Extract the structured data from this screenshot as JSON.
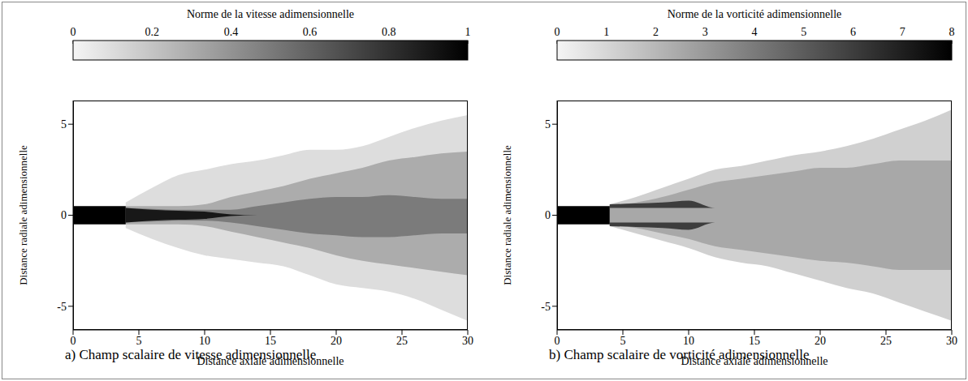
{
  "chart_data": [
    {
      "type": "field",
      "caption": "a)  Champ scalaire de vitesse adimensionnelle",
      "colorbar": {
        "label": "Norme de la vitesse adimensionnelle",
        "range": [
          0,
          1
        ],
        "ticks": [
          0,
          0.2,
          0.4,
          0.6,
          0.8,
          1
        ]
      },
      "xlabel": "Distance axiale adimensionnelle",
      "ylabel": "Distance radiale adimensionnelle",
      "xlim": [
        0,
        30
      ],
      "xticks": [
        0,
        5,
        10,
        15,
        20,
        25,
        30
      ],
      "ylim": [
        -6.3,
        6.3
      ],
      "yticks": [
        -5,
        0,
        5
      ],
      "nozzle": {
        "x": [
          0,
          4
        ],
        "y": [
          -0.5,
          0.5
        ],
        "value": 1
      },
      "regions": {
        "x": [
          4,
          6,
          8,
          10,
          12,
          14,
          16,
          18,
          20,
          22,
          24,
          26,
          28,
          30
        ],
        "levels": [
          {
            "value": 0.1,
            "lower": [
              -0.7,
              -1.3,
              -1.8,
              -2.2,
              -2.4,
              -2.6,
              -2.8,
              -3.3,
              -3.8,
              -4.0,
              -4.2,
              -4.6,
              -5.2,
              -5.8
            ],
            "upper": [
              0.7,
              1.5,
              2.2,
              2.5,
              2.8,
              3.0,
              3.3,
              3.6,
              3.6,
              3.8,
              4.3,
              4.8,
              5.2,
              5.5
            ]
          },
          {
            "value": 0.3,
            "lower": [
              -0.5,
              -0.5,
              -0.5,
              -0.6,
              -0.9,
              -1.2,
              -1.5,
              -1.8,
              -2.2,
              -2.5,
              -2.7,
              -2.9,
              -3.1,
              -3.3
            ],
            "upper": [
              0.5,
              0.5,
              0.5,
              0.6,
              1.0,
              1.3,
              1.6,
              2.0,
              2.3,
              2.6,
              3.0,
              3.2,
              3.4,
              3.5
            ]
          },
          {
            "value": 0.5,
            "lower": [
              -0.4,
              -0.35,
              -0.3,
              -0.3,
              -0.4,
              -0.6,
              -0.8,
              -1.0,
              -1.1,
              -1.2,
              -1.2,
              -1.1,
              -1.0,
              -1.0
            ],
            "upper": [
              0.4,
              0.35,
              0.3,
              0.3,
              0.3,
              0.5,
              0.7,
              0.9,
              1.0,
              1.0,
              1.1,
              1.0,
              0.9,
              0.9
            ]
          },
          {
            "value": 0.9,
            "lower": [
              -0.4,
              -0.3,
              -0.25,
              -0.2,
              -0.05,
              0,
              0,
              0,
              0,
              0,
              0,
              0,
              0,
              0
            ],
            "upper": [
              0.4,
              0.3,
              0.25,
              0.2,
              0.05,
              0,
              0,
              0,
              0,
              0,
              0,
              0,
              0,
              0
            ]
          }
        ]
      }
    },
    {
      "type": "field",
      "caption": "b)  Champ scalaire de vorticité adimensionnelle",
      "colorbar": {
        "label": "Norme de la vorticité adimensionnelle",
        "range": [
          0,
          8
        ],
        "ticks": [
          0,
          1,
          2,
          3,
          4,
          5,
          6,
          7,
          8
        ]
      },
      "xlabel": "Distance axiale adimensionnelle",
      "ylabel": "Distance radiale adimensionnelle",
      "xlim": [
        0,
        30
      ],
      "xticks": [
        0,
        5,
        10,
        15,
        20,
        25,
        30
      ],
      "ylim": [
        -6.3,
        6.3
      ],
      "yticks": [
        -5,
        0,
        5
      ],
      "nozzle": {
        "x": [
          0,
          4
        ],
        "y": [
          -0.5,
          0.5
        ],
        "value": 8
      },
      "regions": {
        "x": [
          4,
          6,
          8,
          10,
          12,
          14,
          16,
          18,
          20,
          22,
          24,
          26,
          28,
          30
        ],
        "levels": [
          {
            "value": 1.2,
            "lower": [
              -0.6,
              -1.0,
              -1.4,
              -1.8,
              -2.3,
              -2.6,
              -2.8,
              -3.2,
              -3.6,
              -4.0,
              -4.3,
              -4.8,
              -5.3,
              -5.8
            ],
            "upper": [
              0.6,
              1.0,
              1.5,
              2.0,
              2.5,
              2.7,
              3.0,
              3.3,
              3.5,
              3.8,
              4.2,
              4.7,
              5.2,
              5.8
            ]
          },
          {
            "value": 2.5,
            "lower": [
              -0.55,
              -0.7,
              -1.0,
              -1.3,
              -1.7,
              -1.9,
              -2.1,
              -2.3,
              -2.5,
              -2.6,
              -2.8,
              -3.0,
              -3.0,
              -3.0
            ],
            "upper": [
              0.55,
              0.7,
              1.0,
              1.4,
              1.8,
              2.0,
              2.2,
              2.4,
              2.6,
              2.6,
              2.8,
              3.0,
              3.0,
              3.0
            ]
          },
          {
            "value": 6,
            "lower": [
              0.4,
              0.4,
              0.4,
              0.4,
              0.4,
              0.4,
              0.4,
              0.4,
              0.4,
              0.4,
              0.4,
              0.4,
              0.4,
              0.4
            ],
            "upper": [
              0.6,
              0.65,
              0.7,
              0.8,
              0.4,
              0.4,
              0.4,
              0.4,
              0.4,
              0.4,
              0.4,
              0.4,
              0.4,
              0.4
            ]
          },
          {
            "value": 6,
            "lower": [
              -0.6,
              -0.65,
              -0.7,
              -0.8,
              -0.4,
              -0.4,
              -0.4,
              -0.4,
              -0.4,
              -0.4,
              -0.4,
              -0.4,
              -0.4,
              -0.4
            ],
            "upper": [
              -0.4,
              -0.4,
              -0.4,
              -0.4,
              -0.4,
              -0.4,
              -0.4,
              -0.4,
              -0.4,
              -0.4,
              -0.4,
              -0.4,
              -0.4,
              -0.4
            ]
          }
        ]
      }
    }
  ]
}
